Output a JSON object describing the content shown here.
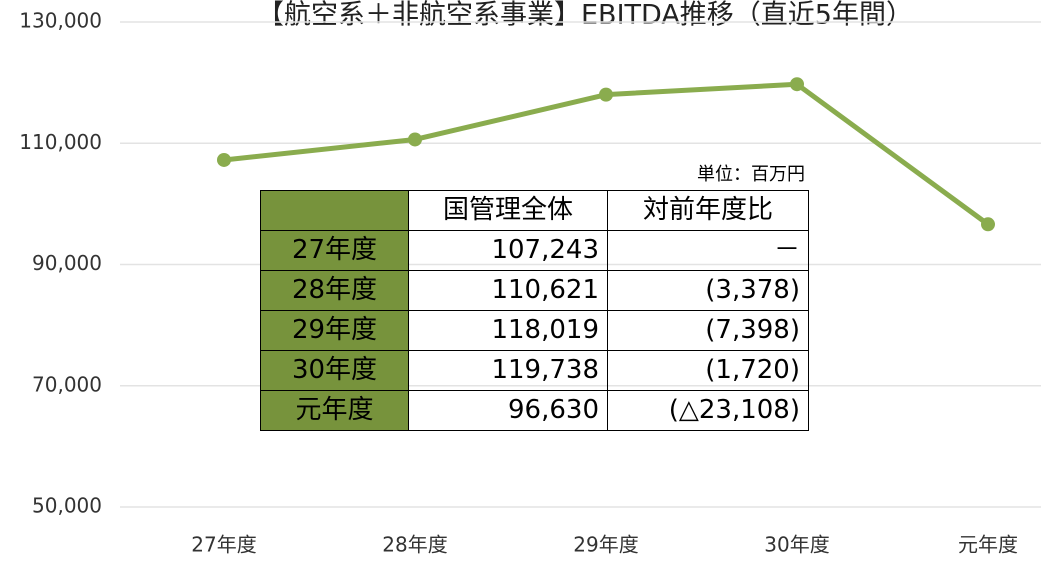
{
  "chart_data": {
    "type": "line",
    "title": "【航空系＋非航空系事業】EBITDA推移（直近5年間）",
    "categories": [
      "27年度",
      "28年度",
      "29年度",
      "30年度",
      "元年度"
    ],
    "series": [
      {
        "name": "国管理全体",
        "color": "#8aac4e",
        "values": [
          107243,
          110621,
          118019,
          119738,
          96630
        ]
      }
    ],
    "ylim": [
      50000,
      130000
    ],
    "yticks": [
      {
        "value": 50000,
        "label": "50,000"
      },
      {
        "value": 70000,
        "label": "70,000"
      },
      {
        "value": 90000,
        "label": "90,000"
      },
      {
        "value": 110000,
        "label": "110,000"
      },
      {
        "value": 130000,
        "label": "130,000"
      }
    ],
    "grid": true
  },
  "table": {
    "unit": "単位：百万円",
    "header": [
      "国管理全体",
      "対前年度比"
    ],
    "rows": [
      [
        "27年度",
        "107,243",
        "－"
      ],
      [
        "28年度",
        "110,621",
        "(3,378)"
      ],
      [
        "29年度",
        "118,019",
        "(7,398)"
      ],
      [
        "30年度",
        "119,738",
        "(1,720)"
      ],
      [
        "元年度",
        "96,630",
        "(△23,108)"
      ]
    ]
  }
}
